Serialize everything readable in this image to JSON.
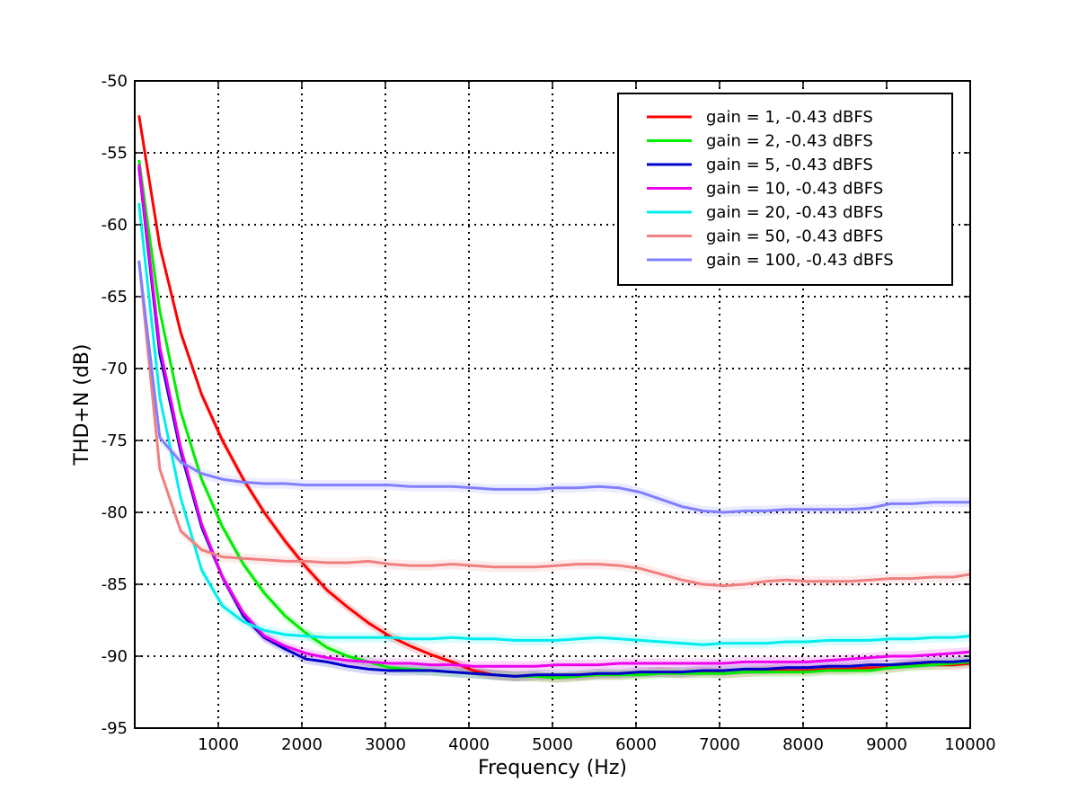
{
  "chart_data": {
    "type": "line",
    "title": "",
    "xlabel": "Frequency (Hz)",
    "ylabel": "THD+N (dB)",
    "xlim": [
      0,
      10000
    ],
    "ylim": [
      -95,
      -50
    ],
    "x_ticks": [
      1000,
      2000,
      3000,
      4000,
      5000,
      6000,
      7000,
      8000,
      9000,
      10000
    ],
    "x_tick_labels": [
      "1000",
      "2000",
      "3000",
      "4000",
      "5000",
      "6000",
      "7000",
      "8000",
      "9000",
      "10000"
    ],
    "y_ticks": [
      -95,
      -90,
      -85,
      -80,
      -75,
      -70,
      -65,
      -60,
      -55,
      -50
    ],
    "y_tick_labels": [
      "-95",
      "-90",
      "-85",
      "-80",
      "-75",
      "-70",
      "-65",
      "-60",
      "-55",
      "-50"
    ],
    "grid": true,
    "legend_position": "top-right",
    "x": [
      50,
      300,
      550,
      800,
      1050,
      1300,
      1550,
      1800,
      2050,
      2300,
      2550,
      2800,
      3050,
      3300,
      3550,
      3800,
      4050,
      4300,
      4550,
      4800,
      5050,
      5300,
      5550,
      5800,
      6050,
      6300,
      6550,
      6800,
      7050,
      7300,
      7550,
      7800,
      8050,
      8300,
      8550,
      8800,
      9050,
      9300,
      9550,
      9800,
      10000
    ],
    "series": [
      {
        "name": "gain = 1, -0.43 dBFS",
        "color": "#ff0000",
        "values": [
          -52.4,
          -61.5,
          -67.5,
          -71.8,
          -75.0,
          -77.7,
          -80.0,
          -82.0,
          -83.8,
          -85.4,
          -86.6,
          -87.7,
          -88.6,
          -89.3,
          -89.9,
          -90.4,
          -91.0,
          -91.3,
          -91.4,
          -91.4,
          -91.5,
          -91.4,
          -91.3,
          -91.3,
          -91.2,
          -91.1,
          -91.2,
          -91.1,
          -91.2,
          -91.1,
          -91.0,
          -91.0,
          -91.0,
          -90.9,
          -90.9,
          -90.8,
          -90.8,
          -90.6,
          -90.6,
          -90.6,
          -90.5
        ]
      },
      {
        "name": "gain = 2, -0.43 dBFS",
        "color": "#00ee00",
        "values": [
          -55.5,
          -66.0,
          -73.0,
          -77.7,
          -81.0,
          -83.6,
          -85.6,
          -87.2,
          -88.4,
          -89.4,
          -90.0,
          -90.4,
          -90.8,
          -90.9,
          -91.0,
          -91.1,
          -91.2,
          -91.3,
          -91.4,
          -91.4,
          -91.5,
          -91.4,
          -91.3,
          -91.3,
          -91.3,
          -91.2,
          -91.2,
          -91.2,
          -91.2,
          -91.1,
          -91.1,
          -91.1,
          -91.1,
          -91.0,
          -91.0,
          -91.0,
          -90.8,
          -90.7,
          -90.6,
          -90.5,
          -90.4
        ]
      },
      {
        "name": "gain = 5, -0.43 dBFS",
        "color": "#0000cc",
        "values": [
          -56.0,
          -69.0,
          -75.8,
          -81.0,
          -84.5,
          -87.2,
          -88.7,
          -89.5,
          -90.2,
          -90.4,
          -90.7,
          -90.9,
          -91.0,
          -91.0,
          -91.0,
          -91.1,
          -91.2,
          -91.3,
          -91.4,
          -91.3,
          -91.3,
          -91.3,
          -91.2,
          -91.2,
          -91.1,
          -91.1,
          -91.1,
          -91.0,
          -91.0,
          -90.9,
          -90.9,
          -90.8,
          -90.8,
          -90.7,
          -90.7,
          -90.6,
          -90.6,
          -90.5,
          -90.4,
          -90.4,
          -90.3
        ]
      },
      {
        "name": "gain = 10, -0.43 dBFS",
        "color": "#ee00ee",
        "values": [
          -55.8,
          -68.5,
          -75.5,
          -80.8,
          -84.5,
          -87.0,
          -88.6,
          -89.3,
          -89.8,
          -90.1,
          -90.3,
          -90.4,
          -90.5,
          -90.5,
          -90.6,
          -90.6,
          -90.7,
          -90.7,
          -90.7,
          -90.7,
          -90.6,
          -90.6,
          -90.6,
          -90.5,
          -90.5,
          -90.5,
          -90.5,
          -90.5,
          -90.5,
          -90.4,
          -90.4,
          -90.4,
          -90.4,
          -90.3,
          -90.2,
          -90.1,
          -90.0,
          -90.0,
          -89.9,
          -89.8,
          -89.7
        ]
      },
      {
        "name": "gain = 20, -0.43 dBFS",
        "color": "#00eeee",
        "values": [
          -58.5,
          -72.0,
          -79.0,
          -84.0,
          -86.5,
          -87.6,
          -88.2,
          -88.5,
          -88.6,
          -88.7,
          -88.7,
          -88.7,
          -88.7,
          -88.8,
          -88.8,
          -88.7,
          -88.8,
          -88.8,
          -88.9,
          -88.9,
          -88.9,
          -88.8,
          -88.7,
          -88.8,
          -88.9,
          -89.0,
          -89.1,
          -89.2,
          -89.1,
          -89.1,
          -89.1,
          -89.0,
          -89.0,
          -88.9,
          -88.9,
          -88.9,
          -88.8,
          -88.8,
          -88.7,
          -88.7,
          -88.6
        ]
      },
      {
        "name": "gain = 50, -0.43 dBFS",
        "color": "#f08080",
        "values": [
          -62.5,
          -77.0,
          -81.3,
          -82.6,
          -83.1,
          -83.2,
          -83.3,
          -83.4,
          -83.4,
          -83.5,
          -83.5,
          -83.4,
          -83.6,
          -83.7,
          -83.7,
          -83.6,
          -83.7,
          -83.8,
          -83.8,
          -83.8,
          -83.7,
          -83.6,
          -83.6,
          -83.7,
          -83.9,
          -84.3,
          -84.7,
          -85.0,
          -85.1,
          -85.0,
          -84.8,
          -84.7,
          -84.8,
          -84.8,
          -84.8,
          -84.7,
          -84.6,
          -84.6,
          -84.5,
          -84.5,
          -84.3
        ]
      },
      {
        "name": "gain = 100, -0.43 dBFS",
        "color": "#8080ff",
        "values": [
          -62.5,
          -74.8,
          -76.5,
          -77.3,
          -77.7,
          -77.9,
          -78.0,
          -78.0,
          -78.1,
          -78.1,
          -78.1,
          -78.1,
          -78.1,
          -78.2,
          -78.2,
          -78.2,
          -78.3,
          -78.4,
          -78.4,
          -78.4,
          -78.3,
          -78.3,
          -78.2,
          -78.3,
          -78.6,
          -79.1,
          -79.6,
          -79.9,
          -80.0,
          -79.9,
          -79.9,
          -79.8,
          -79.8,
          -79.8,
          -79.8,
          -79.7,
          -79.4,
          -79.4,
          -79.3,
          -79.3,
          -79.3
        ]
      }
    ]
  }
}
